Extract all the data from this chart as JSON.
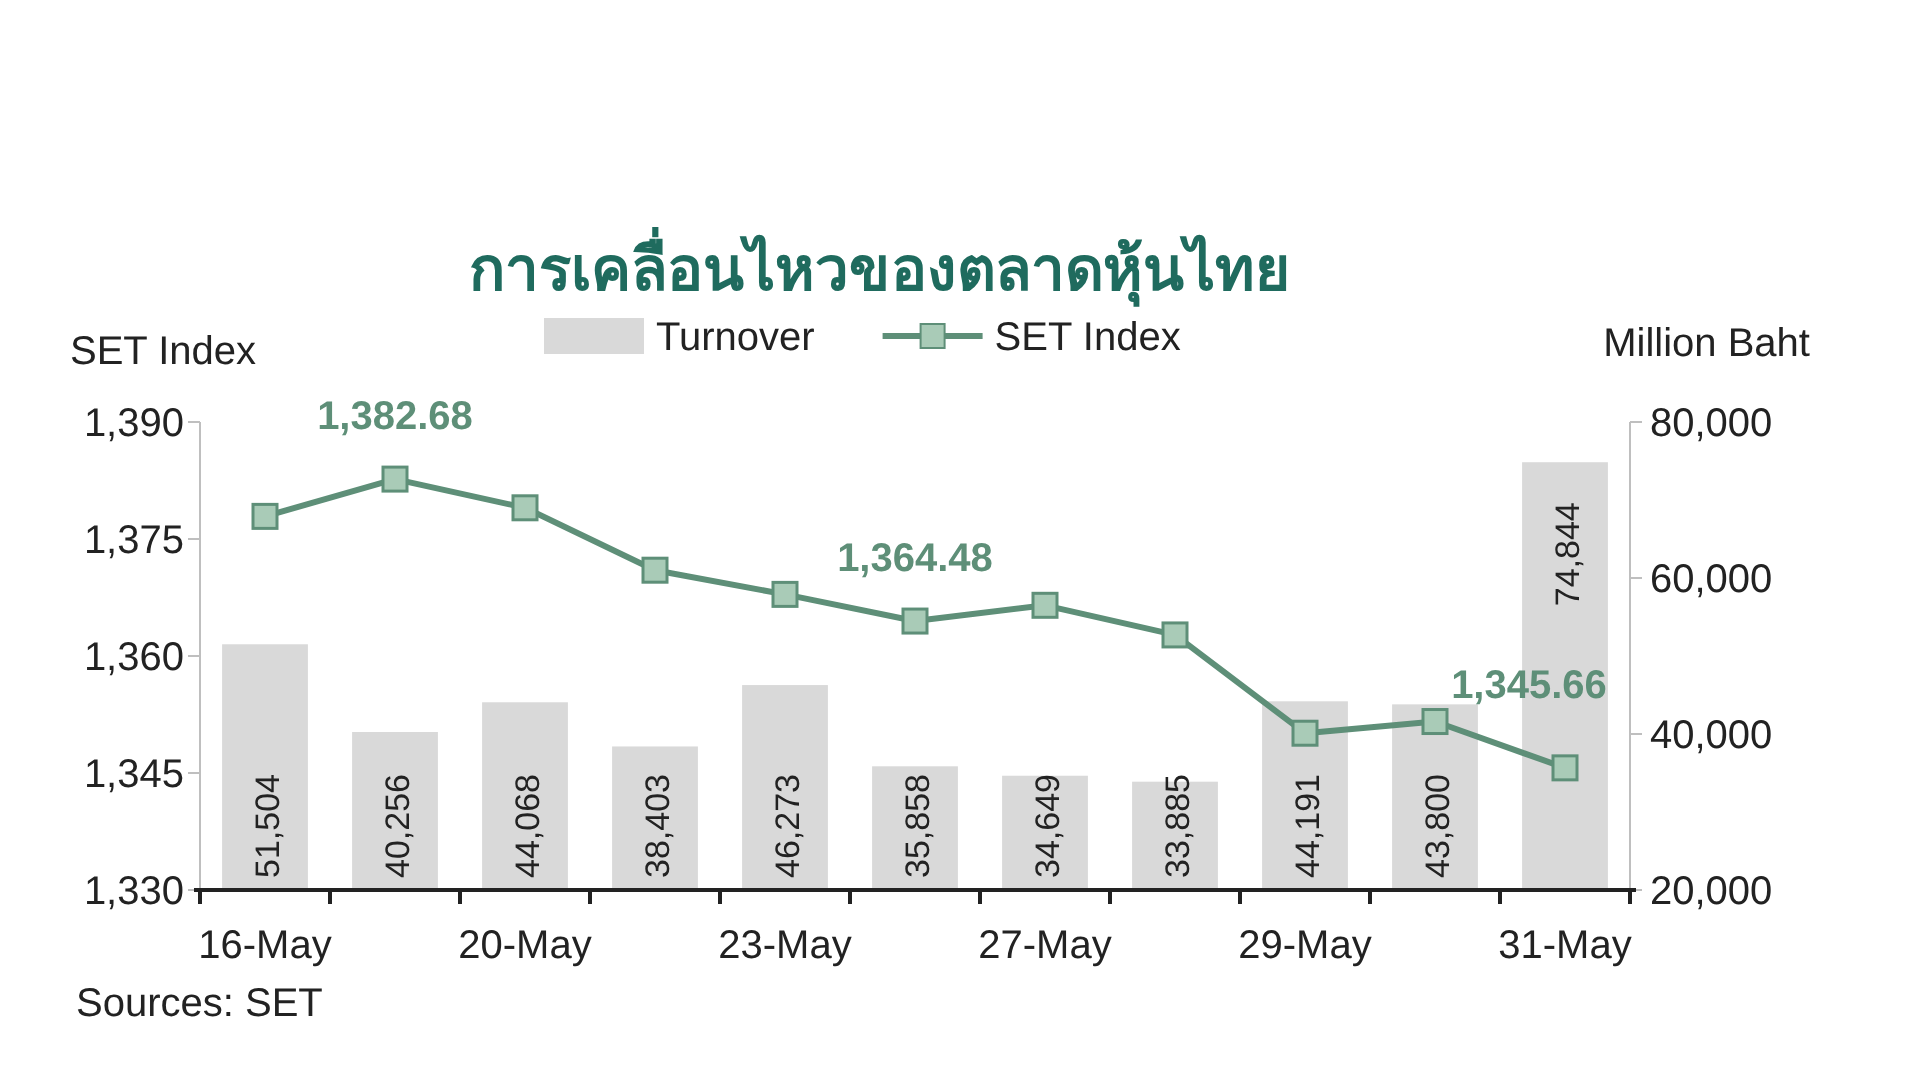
{
  "chart_data": {
    "type": "bar",
    "title": "การเคลื่อนไหวของตลาดหุ้นไทย",
    "ylabel": "SET Index",
    "y2label": "Million Baht",
    "categories": [
      "16-May",
      null,
      "20-May",
      null,
      "23-May",
      null,
      "27-May",
      null,
      "29-May",
      null,
      "31-May"
    ],
    "ylim": [
      1330,
      1390
    ],
    "yticks": [
      {
        "value": 1330,
        "label": "1,330"
      },
      {
        "value": 1345,
        "label": "1,345"
      },
      {
        "value": 1360,
        "label": "1,360"
      },
      {
        "value": 1375,
        "label": "1,375"
      },
      {
        "value": 1390,
        "label": "1,390"
      }
    ],
    "y2lim": [
      20000,
      80000
    ],
    "y2ticks": [
      {
        "value": 20000,
        "label": "20,000"
      },
      {
        "value": 40000,
        "label": "40,000"
      },
      {
        "value": 60000,
        "label": "60,000"
      },
      {
        "value": 80000,
        "label": "80,000"
      }
    ],
    "series": [
      {
        "name": "Turnover",
        "type": "bar",
        "axis": "y2",
        "color": "#d9d9d9",
        "values": [
          51504,
          40256,
          44068,
          38403,
          46273,
          35858,
          34649,
          33885,
          44191,
          43800,
          74844
        ],
        "value_labels": [
          "51,504",
          "40,256",
          "44,068",
          "38,403",
          "46,273",
          "35,858",
          "34,649",
          "33,885",
          "44,191",
          "43,800",
          "74,844"
        ]
      },
      {
        "name": "SET Index",
        "type": "line",
        "axis": "y",
        "color": "#5e8f78",
        "marker": "square",
        "values": [
          1377.9,
          1382.68,
          1379.0,
          1371.0,
          1367.9,
          1364.48,
          1366.5,
          1362.7,
          1350.1,
          1351.6,
          1345.66
        ],
        "value_labels": [
          null,
          "1,382.68",
          null,
          null,
          null,
          "1,364.48",
          null,
          null,
          null,
          null,
          "1,345.66"
        ]
      }
    ],
    "legend": "top",
    "grid": false,
    "annotations": [
      "Sources: SET"
    ]
  }
}
